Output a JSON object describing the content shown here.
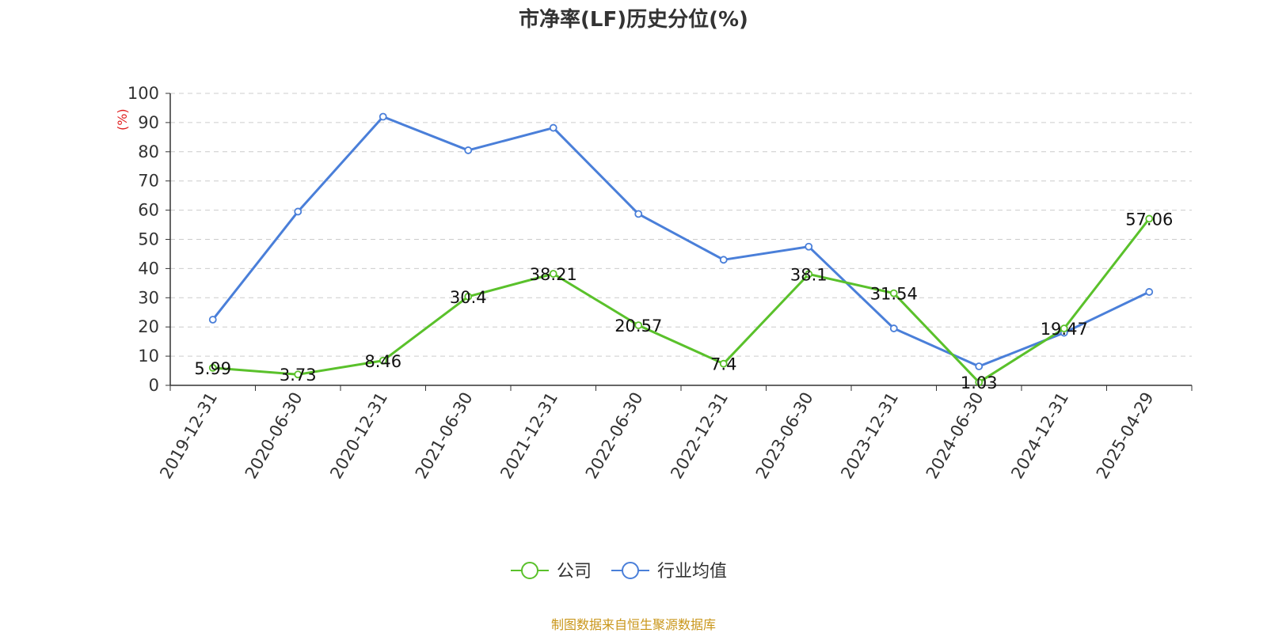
{
  "chart_data": {
    "type": "line",
    "title": "市净率(LF)历史分位(%)",
    "ylabel": "(%)",
    "ylim": [
      0,
      100
    ],
    "yticks": [
      0,
      10,
      20,
      30,
      40,
      50,
      60,
      70,
      80,
      90,
      100
    ],
    "grid": true,
    "legend_position": "bottom-center",
    "categories": [
      "2019-12-31",
      "2020-06-30",
      "2020-12-31",
      "2021-06-30",
      "2021-12-31",
      "2022-06-30",
      "2022-12-31",
      "2023-06-30",
      "2023-12-31",
      "2024-06-30",
      "2024-12-31",
      "2025-04-29"
    ],
    "series": [
      {
        "name": "公司",
        "color": "#5ac12b",
        "values": [
          5.99,
          3.73,
          8.46,
          30.4,
          38.21,
          20.57,
          7.4,
          38.1,
          31.54,
          1.03,
          19.47,
          57.06
        ],
        "labels": [
          "5.99",
          "3.73",
          "8.46",
          "30.4",
          "38.21",
          "20.57",
          "7.4",
          "38.1",
          "31.54",
          "1.03",
          "19.47",
          "57.06"
        ]
      },
      {
        "name": "行业均值",
        "color": "#4a7fd9",
        "values": [
          22.5,
          59.5,
          92,
          80.5,
          88.2,
          58.7,
          43,
          47.5,
          19.5,
          6.5,
          18,
          32
        ]
      }
    ]
  },
  "source_note": "制图数据来自恒生聚源数据库"
}
